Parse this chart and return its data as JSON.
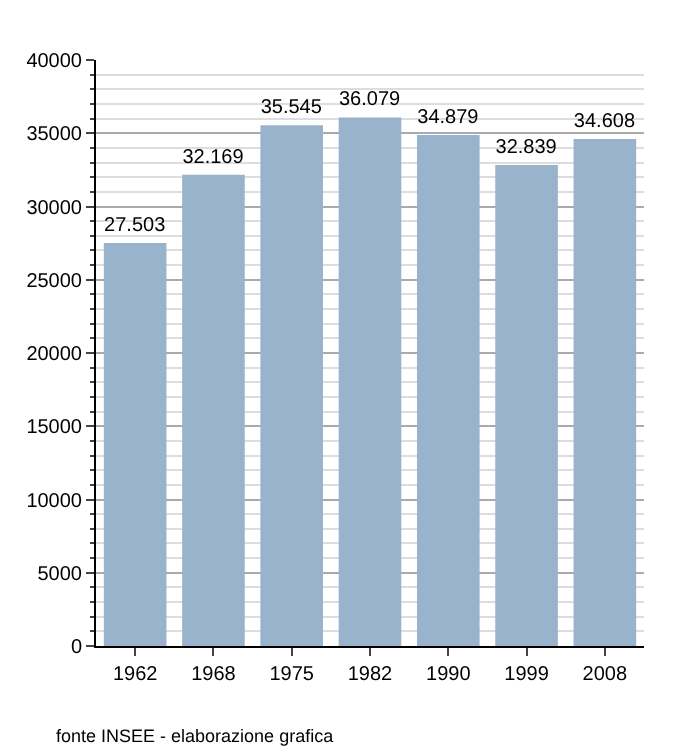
{
  "chart_data": {
    "type": "bar",
    "categories": [
      "1962",
      "1968",
      "1975",
      "1982",
      "1990",
      "1999",
      "2008"
    ],
    "values": [
      27503,
      32169,
      35545,
      36079,
      34879,
      32839,
      34608
    ],
    "value_labels": [
      "27.503",
      "32.169",
      "35.545",
      "36.079",
      "34.879",
      "32.839",
      "34.608"
    ],
    "color": "#9ab3cc",
    "ylim": [
      0,
      40000
    ],
    "yticks": [
      0,
      5000,
      10000,
      15000,
      20000,
      25000,
      30000,
      35000,
      40000
    ],
    "grid": "y",
    "annotations": [
      "fonte INSEE - elaborazione grafica"
    ]
  }
}
